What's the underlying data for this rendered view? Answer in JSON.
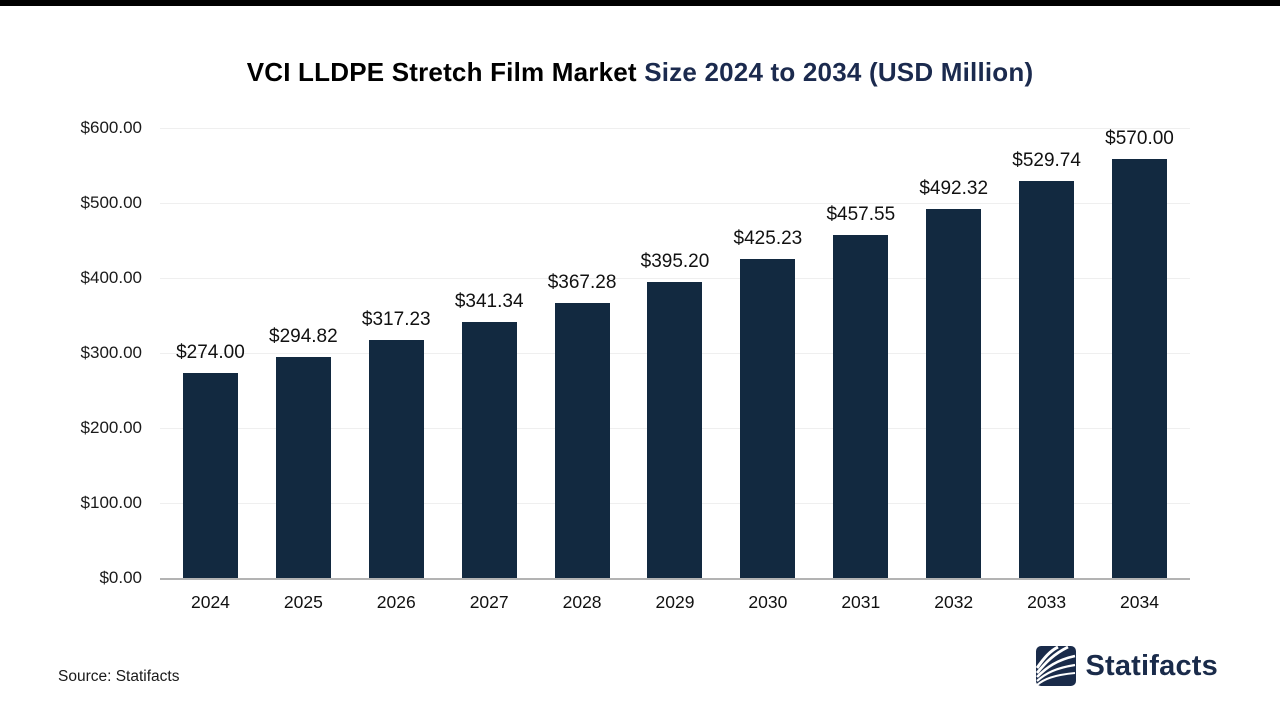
{
  "title": {
    "part1": "VCI LLDPE Stretch Film Market",
    "part2": " Size 2024 to 2034 (USD Million)"
  },
  "chart_data": {
    "type": "bar",
    "title": "VCI LLDPE Stretch Film Market Size 2024 to 2034 (USD Million)",
    "categories": [
      "2024",
      "2025",
      "2026",
      "2027",
      "2028",
      "2029",
      "2030",
      "2031",
      "2032",
      "2033",
      "2034"
    ],
    "values": [
      274.0,
      294.82,
      317.23,
      341.34,
      367.28,
      395.2,
      425.23,
      457.55,
      492.32,
      529.74,
      570.0
    ],
    "data_labels": [
      "$274.00",
      "$294.82",
      "$317.23",
      "$341.34",
      "$367.28",
      "$395.20",
      "$425.23",
      "$457.55",
      "$492.32",
      "$529.74",
      "$570.00"
    ],
    "xlabel": "",
    "ylabel": "",
    "ylim": [
      0,
      600
    ],
    "y_ticks": [
      {
        "label": "$0.00",
        "value": 0
      },
      {
        "label": "$100.00",
        "value": 100
      },
      {
        "label": "$200.00",
        "value": 200
      },
      {
        "label": "$300.00",
        "value": 300
      },
      {
        "label": "$400.00",
        "value": 400
      },
      {
        "label": "$500.00",
        "value": 500
      },
      {
        "label": "$600.00",
        "value": 600
      }
    ],
    "grid": true,
    "legend": false,
    "bar_color": "#122940",
    "gridline_color": "#efefef",
    "baseline_color": "#b3b3b3"
  },
  "footer": {
    "source": "Source: Statifacts",
    "brand": "Statifacts"
  },
  "colors": {
    "title_primary": "#000000",
    "title_accent": "#1b2a4e",
    "brand_navy": "#1a2b4a"
  }
}
